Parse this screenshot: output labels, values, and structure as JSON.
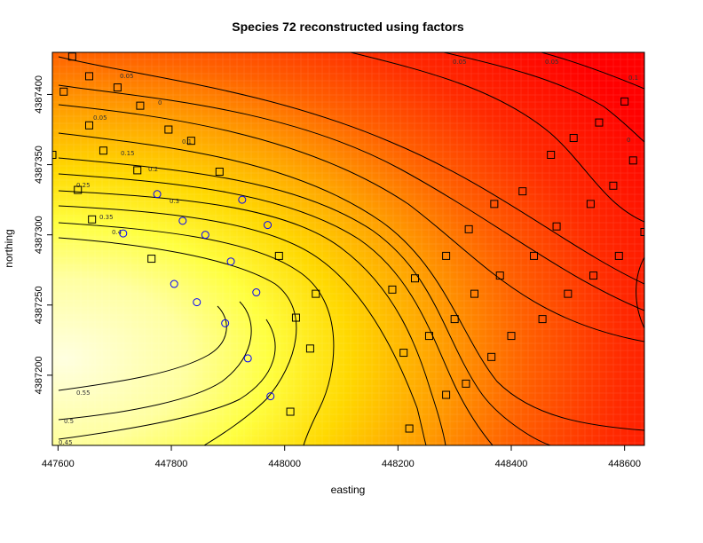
{
  "chart_data": {
    "type": "heatmap",
    "title": "Species 72 reconstructed using factors",
    "xlabel": "easting",
    "ylabel": "northing",
    "xlim": [
      447590,
      448635
    ],
    "ylim": [
      4387150,
      4387430
    ],
    "x_ticks": [
      447600,
      447800,
      448000,
      448200,
      448400,
      448600
    ],
    "y_ticks": [
      4387200,
      4387250,
      4387300,
      4387350,
      4387400
    ],
    "grid": false,
    "color_scale": [
      "#ff0000",
      "#ff6000",
      "#ffa000",
      "#ffd800",
      "#ffff40",
      "#ffffc0"
    ],
    "contour_levels": [
      0.05,
      0.1,
      0.15,
      0.2,
      0.25,
      0.3,
      0.35,
      0.4,
      0.45,
      0.5,
      0.55
    ],
    "contour_labels": [
      "0.05",
      "0.05",
      "0",
      "0.1",
      "0.15",
      "0.2",
      "0.25",
      "0.3",
      "0.35",
      "0.4",
      "0.45",
      "0.5",
      "0.55",
      "0.05",
      "0.05",
      "0.1",
      "0"
    ],
    "squares": [
      [
        447625,
        4387427
      ],
      [
        447655,
        4387413
      ],
      [
        447610,
        4387402
      ],
      [
        447705,
        4387405
      ],
      [
        447745,
        4387392
      ],
      [
        447655,
        4387378
      ],
      [
        447795,
        4387375
      ],
      [
        447680,
        4387360
      ],
      [
        447835,
        4387367
      ],
      [
        447590,
        4387357
      ],
      [
        447740,
        4387346
      ],
      [
        447885,
        4387345
      ],
      [
        447635,
        4387332
      ],
      [
        447660,
        4387311
      ],
      [
        447765,
        4387283
      ],
      [
        447990,
        4387285
      ],
      [
        448055,
        4387258
      ],
      [
        448020,
        4387241
      ],
      [
        448045,
        4387219
      ],
      [
        448010,
        4387174
      ],
      [
        448190,
        4387261
      ],
      [
        448230,
        4387269
      ],
      [
        448210,
        4387216
      ],
      [
        448255,
        4387228
      ],
      [
        448220,
        4387162
      ],
      [
        448285,
        4387186
      ],
      [
        448320,
        4387194
      ],
      [
        448285,
        4387285
      ],
      [
        448300,
        4387240
      ],
      [
        448335,
        4387258
      ],
      [
        448325,
        4387304
      ],
      [
        448365,
        4387213
      ],
      [
        448370,
        4387322
      ],
      [
        448380,
        4387271
      ],
      [
        448400,
        4387228
      ],
      [
        448420,
        4387331
      ],
      [
        448440,
        4387285
      ],
      [
        448455,
        4387240
      ],
      [
        448470,
        4387357
      ],
      [
        448480,
        4387306
      ],
      [
        448500,
        4387258
      ],
      [
        448510,
        4387369
      ],
      [
        448540,
        4387322
      ],
      [
        448545,
        4387271
      ],
      [
        448555,
        4387380
      ],
      [
        448580,
        4387335
      ],
      [
        448590,
        4387285
      ],
      [
        448600,
        4387395
      ],
      [
        448615,
        4387353
      ],
      [
        448635,
        4387302
      ]
    ],
    "circles": [
      [
        447715,
        4387301
      ],
      [
        447775,
        4387329
      ],
      [
        447820,
        4387310
      ],
      [
        447860,
        4387300
      ],
      [
        447925,
        4387325
      ],
      [
        447970,
        4387307
      ],
      [
        447905,
        4387281
      ],
      [
        447805,
        4387265
      ],
      [
        447845,
        4387252
      ],
      [
        447950,
        4387259
      ],
      [
        447895,
        4387237
      ],
      [
        447935,
        4387212
      ],
      [
        447975,
        4387185
      ]
    ]
  }
}
